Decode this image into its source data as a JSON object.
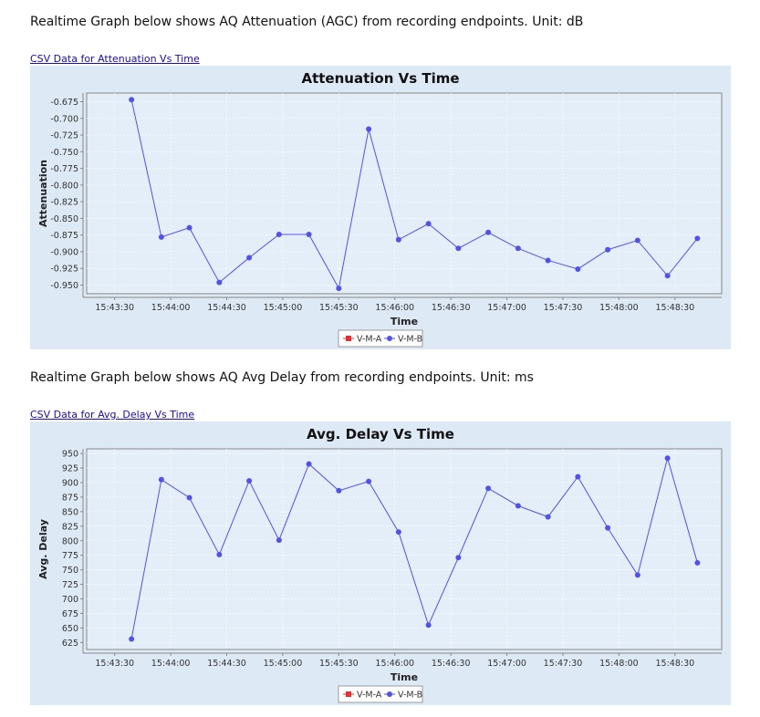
{
  "sections": [
    {
      "description": "Realtime Graph below shows AQ Attenuation (AGC) from recording endpoints. Unit: dB",
      "csv_link": "CSV Data for Attenuation Vs Time"
    },
    {
      "description": "Realtime Graph below shows AQ Avg Delay from recording endpoints. Unit: ms",
      "csv_link": "CSV Data for Avg. Delay Vs Time"
    }
  ],
  "chart_data": [
    {
      "type": "line",
      "title": "Attenuation Vs Time",
      "xlabel": "Time",
      "ylabel": "Attenuation",
      "x_ticks": [
        "15:43:30",
        "15:44:00",
        "15:44:30",
        "15:45:00",
        "15:45:30",
        "15:46:00",
        "15:46:30",
        "15:47:00",
        "15:47:30",
        "15:48:00",
        "15:48:30"
      ],
      "xlim": [
        "15:43:15",
        "15:48:55"
      ],
      "y_ticks": [
        "-0.675",
        "-0.700",
        "-0.725",
        "-0.750",
        "-0.775",
        "-0.800",
        "-0.825",
        "-0.850",
        "-0.875",
        "-0.900",
        "-0.925",
        "-0.950"
      ],
      "ylim": [
        -0.963,
        -0.662
      ],
      "legend": [
        "V-M-A",
        "V-M-B"
      ],
      "legend_placement": "bottom-center",
      "grid": true,
      "series": [
        {
          "name": "V-M-A",
          "color": "#e03030",
          "x": [],
          "y": []
        },
        {
          "name": "V-M-B",
          "color": "#5252e8",
          "x": [
            "15:43:39",
            "15:43:55",
            "15:44:10",
            "15:44:26",
            "15:44:42",
            "15:44:58",
            "15:45:14",
            "15:45:30",
            "15:45:46",
            "15:46:02",
            "15:46:18",
            "15:46:34",
            "15:46:50",
            "15:47:06",
            "15:47:22",
            "15:47:38",
            "15:47:54",
            "15:48:10",
            "15:48:26",
            "15:48:42"
          ],
          "y": [
            -0.672,
            -0.878,
            -0.864,
            -0.946,
            -0.909,
            -0.874,
            -0.874,
            -0.955,
            -0.716,
            -0.882,
            -0.858,
            -0.895,
            -0.871,
            -0.895,
            -0.913,
            -0.926,
            -0.897,
            -0.883,
            -0.936,
            -0.88
          ]
        }
      ]
    },
    {
      "type": "line",
      "title": "Avg. Delay Vs Time",
      "xlabel": "Time",
      "ylabel": "Avg. Delay",
      "x_ticks": [
        "15:43:30",
        "15:44:00",
        "15:44:30",
        "15:45:00",
        "15:45:30",
        "15:46:00",
        "15:46:30",
        "15:47:00",
        "15:47:30",
        "15:48:00",
        "15:48:30"
      ],
      "xlim": [
        "15:43:15",
        "15:48:55"
      ],
      "y_ticks": [
        "950",
        "925",
        "900",
        "875",
        "850",
        "825",
        "800",
        "775",
        "750",
        "725",
        "700",
        "675",
        "650",
        "625"
      ],
      "ylim": [
        613,
        958
      ],
      "legend": [
        "V-M-A",
        "V-M-B"
      ],
      "legend_placement": "bottom-center",
      "grid": true,
      "series": [
        {
          "name": "V-M-A",
          "color": "#e03030",
          "x": [],
          "y": []
        },
        {
          "name": "V-M-B",
          "color": "#5252e8",
          "x": [
            "15:43:39",
            "15:43:55",
            "15:44:10",
            "15:44:26",
            "15:44:42",
            "15:44:58",
            "15:45:14",
            "15:45:30",
            "15:45:46",
            "15:46:02",
            "15:46:18",
            "15:46:34",
            "15:46:50",
            "15:47:06",
            "15:47:22",
            "15:47:38",
            "15:47:54",
            "15:48:10",
            "15:48:26",
            "15:48:42"
          ],
          "y": [
            631,
            905,
            874,
            776,
            903,
            801,
            932,
            886,
            902,
            815,
            655,
            771,
            890,
            860,
            841,
            910,
            822,
            741,
            942,
            762
          ]
        }
      ]
    }
  ]
}
